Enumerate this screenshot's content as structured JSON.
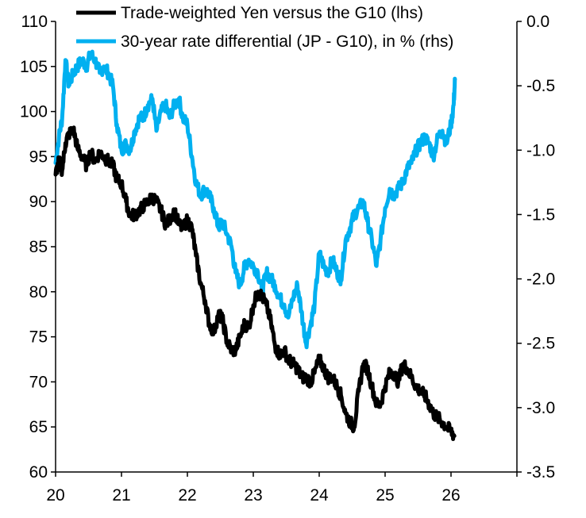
{
  "chart_data": {
    "type": "line",
    "title": "",
    "legend": [
      {
        "label": "Trade-weighted Yen versus the G10 (lhs)",
        "series": "yen",
        "color": "#000000"
      },
      {
        "label": "30-year rate differential (JP - G10), in % (rhs)",
        "series": "diff",
        "color": "#00B0F0"
      }
    ],
    "x_axis": {
      "range": [
        20,
        27
      ],
      "ticks": [
        "20",
        "21",
        "22",
        "23",
        "24",
        "25",
        "26"
      ]
    },
    "y_left": {
      "range": [
        60,
        110
      ],
      "ticks": [
        "60",
        "65",
        "70",
        "75",
        "80",
        "85",
        "90",
        "95",
        "100",
        "105",
        "110"
      ]
    },
    "y_right": {
      "range": [
        -3.5,
        0
      ],
      "ticks": [
        "0.0",
        "-0.5",
        "-1.0",
        "-1.5",
        "-2.0",
        "-2.5",
        "-3.0",
        "-3.5"
      ]
    },
    "series": [
      {
        "name": "Trade-weighted Yen versus the G10",
        "axis": "left",
        "color": "#000000",
        "x": [
          20.0,
          20.05,
          20.1,
          20.15,
          20.2,
          20.27,
          20.33,
          20.4,
          20.47,
          20.53,
          20.6,
          20.67,
          20.73,
          20.8,
          20.87,
          20.93,
          21.0,
          21.07,
          21.13,
          21.2,
          21.27,
          21.33,
          21.4,
          21.47,
          21.53,
          21.6,
          21.67,
          21.73,
          21.8,
          21.87,
          21.93,
          22.0,
          22.07,
          22.13,
          22.2,
          22.27,
          22.33,
          22.4,
          22.47,
          22.53,
          22.6,
          22.67,
          22.73,
          22.8,
          22.87,
          22.93,
          23.0,
          23.07,
          23.13,
          23.2,
          23.27,
          23.33,
          23.4,
          23.47,
          23.53,
          23.6,
          23.67,
          23.73,
          23.8,
          23.87,
          23.93,
          24.0,
          24.07,
          24.13,
          24.2,
          24.27,
          24.33,
          24.4,
          24.47,
          24.53,
          24.6,
          24.67,
          24.73,
          24.8,
          24.87,
          24.93,
          25.0,
          25.07,
          25.13,
          25.2,
          25.27,
          25.33,
          25.4,
          25.47,
          25.53,
          25.6,
          25.67,
          25.73,
          25.8,
          25.87,
          25.93,
          26.0,
          26.05
        ],
        "values": [
          93.0,
          94.5,
          93.5,
          96.5,
          97.5,
          98.0,
          96.0,
          95.0,
          94.0,
          95.5,
          94.5,
          95.5,
          95.0,
          94.5,
          94.0,
          92.5,
          92.0,
          90.0,
          88.5,
          88.5,
          89.0,
          89.5,
          90.0,
          90.5,
          90.0,
          89.0,
          87.5,
          88.0,
          89.0,
          87.5,
          87.0,
          88.0,
          87.0,
          84.0,
          81.0,
          79.0,
          76.5,
          75.5,
          77.5,
          77.0,
          74.5,
          73.5,
          73.5,
          75.0,
          76.5,
          76.0,
          78.5,
          80.0,
          79.5,
          78.5,
          76.5,
          74.0,
          73.0,
          73.5,
          72.5,
          72.0,
          71.5,
          70.5,
          70.5,
          70.0,
          71.0,
          72.5,
          71.5,
          70.5,
          70.5,
          69.5,
          68.5,
          66.5,
          65.5,
          65.0,
          69.0,
          72.0,
          71.5,
          69.5,
          67.5,
          67.5,
          69.5,
          71.0,
          71.0,
          70.0,
          72.0,
          71.5,
          70.5,
          69.5,
          69.0,
          68.5,
          67.5,
          66.5,
          66.0,
          65.5,
          65.0,
          64.5,
          64.0
        ]
      },
      {
        "name": "30-year rate differential (JP - G10), in %",
        "axis": "right",
        "color": "#00B0F0",
        "x": [
          20.0,
          20.05,
          20.1,
          20.15,
          20.2,
          20.27,
          20.33,
          20.4,
          20.47,
          20.53,
          20.6,
          20.67,
          20.73,
          20.8,
          20.87,
          20.93,
          21.0,
          21.07,
          21.13,
          21.2,
          21.27,
          21.33,
          21.4,
          21.47,
          21.53,
          21.6,
          21.67,
          21.73,
          21.8,
          21.87,
          21.93,
          22.0,
          22.07,
          22.13,
          22.2,
          22.27,
          22.33,
          22.4,
          22.47,
          22.53,
          22.6,
          22.67,
          22.73,
          22.8,
          22.87,
          22.93,
          23.0,
          23.07,
          23.13,
          23.2,
          23.27,
          23.33,
          23.4,
          23.47,
          23.53,
          23.6,
          23.67,
          23.73,
          23.8,
          23.87,
          23.93,
          24.0,
          24.07,
          24.13,
          24.2,
          24.27,
          24.33,
          24.4,
          24.47,
          24.53,
          24.6,
          24.67,
          24.73,
          24.8,
          24.87,
          24.93,
          25.0,
          25.07,
          25.13,
          25.2,
          25.27,
          25.33,
          25.4,
          25.47,
          25.53,
          25.6,
          25.67,
          25.73,
          25.8,
          25.87,
          25.93,
          26.0,
          26.04,
          26.06
        ],
        "values": [
          -1.1,
          -0.9,
          -0.75,
          -0.3,
          -0.5,
          -0.4,
          -0.35,
          -0.3,
          -0.35,
          -0.25,
          -0.3,
          -0.4,
          -0.35,
          -0.4,
          -0.5,
          -0.8,
          -1.0,
          -0.95,
          -1.0,
          -0.85,
          -0.75,
          -0.75,
          -0.65,
          -0.6,
          -0.85,
          -0.7,
          -0.65,
          -0.75,
          -0.65,
          -0.6,
          -0.75,
          -0.8,
          -1.05,
          -1.25,
          -1.35,
          -1.3,
          -1.35,
          -1.45,
          -1.6,
          -1.55,
          -1.65,
          -1.75,
          -1.95,
          -2.05,
          -1.9,
          -1.85,
          -1.9,
          -1.95,
          -2.1,
          -1.95,
          -2.0,
          -2.05,
          -2.15,
          -2.2,
          -2.3,
          -2.15,
          -2.05,
          -2.25,
          -2.5,
          -2.35,
          -2.2,
          -1.8,
          -1.9,
          -1.95,
          -1.85,
          -1.95,
          -2.0,
          -1.7,
          -1.6,
          -1.5,
          -1.45,
          -1.4,
          -1.55,
          -1.7,
          -1.9,
          -1.7,
          -1.45,
          -1.3,
          -1.35,
          -1.3,
          -1.25,
          -1.15,
          -1.1,
          -1.0,
          -0.95,
          -0.9,
          -0.95,
          -1.05,
          -0.9,
          -0.85,
          -0.95,
          -0.8,
          -0.65,
          -0.45
        ]
      }
    ]
  }
}
